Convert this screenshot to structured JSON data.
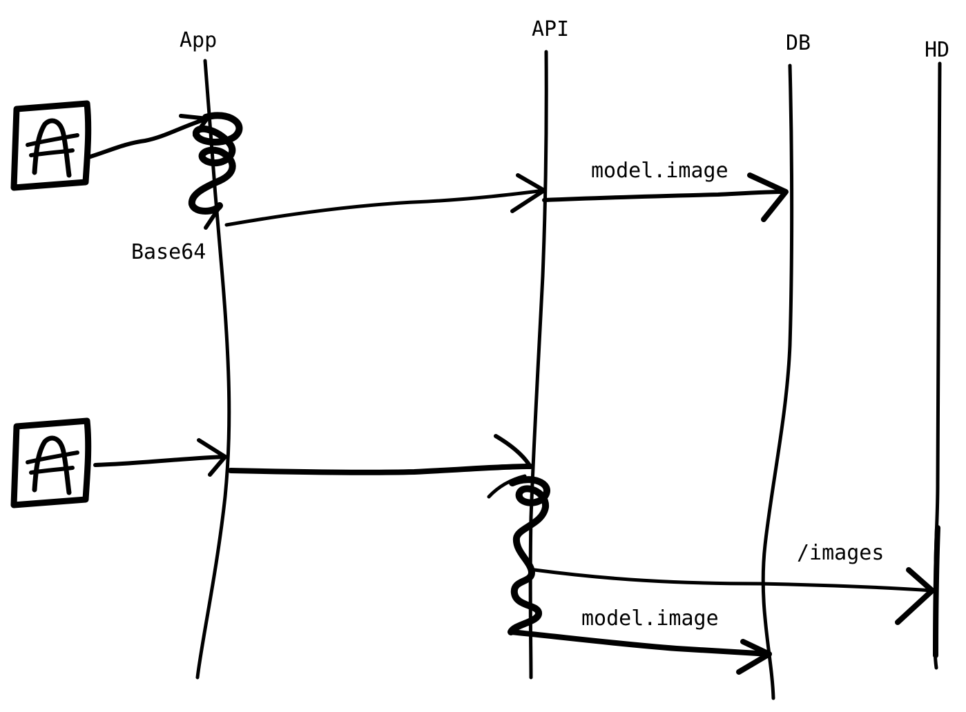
{
  "diagram": {
    "type": "sequence-sketch",
    "ink_color": "#000000",
    "background": "#ffffff",
    "lifelines": [
      {
        "id": "app",
        "label": "App"
      },
      {
        "id": "api",
        "label": "API"
      },
      {
        "id": "db",
        "label": "DB"
      },
      {
        "id": "hd",
        "label": "HD"
      }
    ],
    "image_icons": [
      {
        "id": "image-1",
        "icon": "image-icon"
      },
      {
        "id": "image-2",
        "icon": "image-icon"
      }
    ],
    "process_marks": [
      {
        "id": "process-app",
        "icon": "scribble-process"
      },
      {
        "id": "process-api",
        "icon": "scribble-process"
      }
    ],
    "messages": [
      {
        "id": "msg-image1-to-app",
        "from": "image-1",
        "to": "app",
        "label": ""
      },
      {
        "id": "msg-app-to-api-1",
        "from": "app",
        "to": "api",
        "label": "Base64"
      },
      {
        "id": "msg-api-to-db-1",
        "from": "api",
        "to": "db",
        "label": "model.image"
      },
      {
        "id": "msg-image2-to-app",
        "from": "image-2",
        "to": "app",
        "label": ""
      },
      {
        "id": "msg-app-to-api-2",
        "from": "app",
        "to": "api",
        "label": ""
      },
      {
        "id": "msg-api-to-hd",
        "from": "api",
        "to": "hd",
        "label": "/images"
      },
      {
        "id": "msg-api-to-db-2",
        "from": "api",
        "to": "db",
        "label": "model.image"
      }
    ]
  }
}
